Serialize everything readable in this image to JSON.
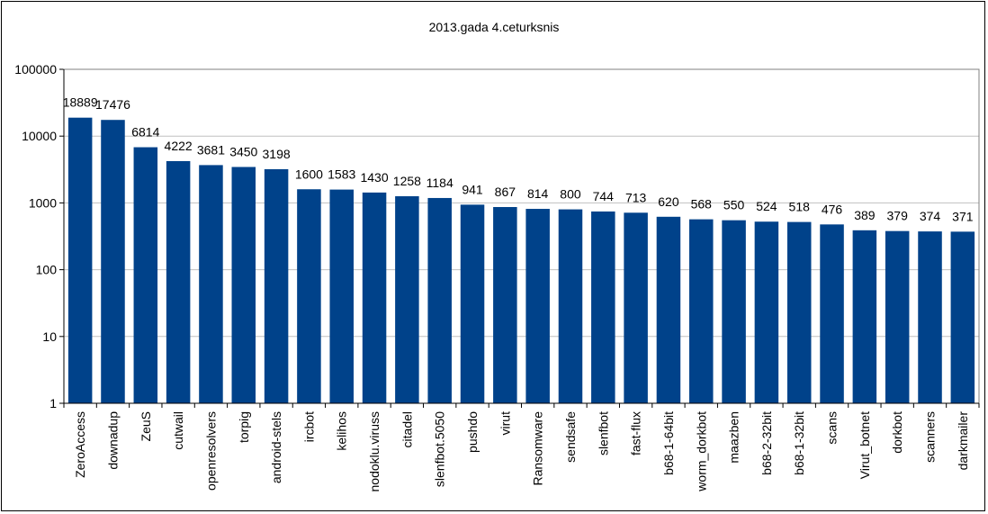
{
  "chart_data": {
    "type": "bar",
    "title": "2013.gada 4.ceturksnis",
    "xlabel": "",
    "ylabel": "",
    "yscale": "log",
    "ylim": [
      1,
      100000
    ],
    "yticks": [
      1,
      10,
      100,
      1000,
      10000,
      100000
    ],
    "grid": true,
    "legend": "none",
    "bar_color": "#00428A",
    "categories": [
      "ZeroAccess",
      "downadup",
      "ZeuS",
      "cutwail",
      "openresolvers",
      "torpig",
      "android-stels",
      "ircbot",
      "kelihos",
      "nodoklu.viruss",
      "citadel",
      "slenfbot.5050",
      "pushdo",
      "virut",
      "Ransomware",
      "sendsafe",
      "slenfbot",
      "fast-flux",
      "b68-1-64bit",
      "worm_dorkbot",
      "maazben",
      "b68-2-32bit",
      "b68-1-32bit",
      "scans",
      "Virut_botnet",
      "dorkbot",
      "scanners",
      "darkmailer"
    ],
    "values": [
      18889,
      17476,
      6814,
      4222,
      3681,
      3450,
      3198,
      1600,
      1583,
      1430,
      1258,
      1184,
      941,
      867,
      814,
      800,
      744,
      713,
      620,
      568,
      550,
      524,
      518,
      476,
      389,
      379,
      374,
      371
    ]
  }
}
